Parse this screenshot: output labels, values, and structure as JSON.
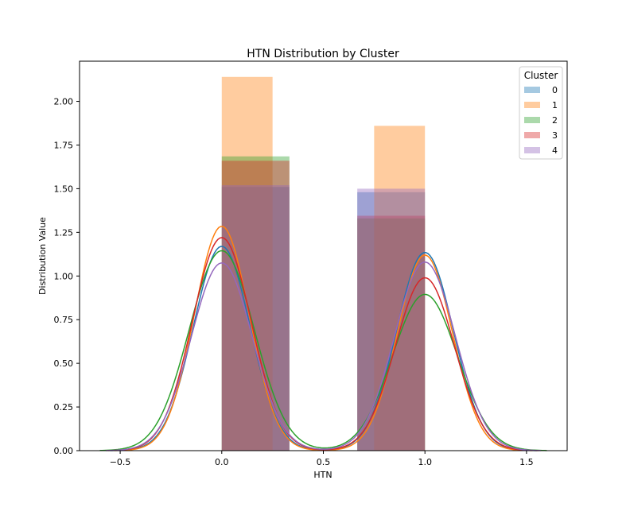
{
  "chart_data": {
    "type": "bar",
    "title": "HTN Distribution by Cluster",
    "xlabel": "HTN",
    "ylabel": "Distribution Value",
    "xlim": [
      -0.7,
      1.7
    ],
    "ylim": [
      0,
      2.23
    ],
    "xticks": [
      -0.5,
      0.0,
      0.5,
      1.0,
      1.5
    ],
    "xtick_labels": [
      "−0.5",
      "0.0",
      "0.5",
      "1.0",
      "1.5"
    ],
    "yticks": [
      0.0,
      0.25,
      0.5,
      0.75,
      1.0,
      1.25,
      1.5,
      1.75,
      2.0
    ],
    "ytick_labels": [
      "0.00",
      "0.25",
      "0.50",
      "0.75",
      "1.00",
      "1.25",
      "1.50",
      "1.75",
      "2.00"
    ],
    "grid": false,
    "legend": {
      "title": "Cluster",
      "placement": "top-right"
    },
    "series": [
      {
        "name": "0",
        "color": "#1f77b4",
        "bars": [
          {
            "x0": 0.0,
            "x1": 0.333,
            "y": 1.51
          },
          {
            "x0": 0.667,
            "x1": 1.0,
            "y": 1.48
          }
        ],
        "kde": {
          "peaks": [
            [
              0.0,
              1.17
            ],
            [
              1.0,
              1.135
            ]
          ],
          "sigma": 0.14,
          "range": [
            -0.55,
            1.55
          ]
        }
      },
      {
        "name": "1",
        "color": "#ff7f0e",
        "bars": [
          {
            "x0": 0.0,
            "x1": 0.25,
            "y": 2.14
          },
          {
            "x0": 0.75,
            "x1": 1.0,
            "y": 1.86
          }
        ],
        "kde": {
          "peaks": [
            [
              0.0,
              1.285
            ],
            [
              1.0,
              1.12
            ]
          ],
          "sigma": 0.135,
          "range": [
            -0.53,
            1.53
          ]
        }
      },
      {
        "name": "2",
        "color": "#2ca02c",
        "bars": [
          {
            "x0": 0.0,
            "x1": 0.333,
            "y": 1.685
          },
          {
            "x0": 0.667,
            "x1": 1.0,
            "y": 1.33
          }
        ],
        "kde": {
          "peaks": [
            [
              0.0,
              1.145
            ],
            [
              1.0,
              0.895
            ]
          ],
          "sigma": 0.16,
          "range": [
            -0.6,
            1.6
          ]
        }
      },
      {
        "name": "3",
        "color": "#d62728",
        "bars": [
          {
            "x0": 0.0,
            "x1": 0.333,
            "y": 1.66
          },
          {
            "x0": 0.667,
            "x1": 1.0,
            "y": 1.345
          }
        ],
        "kde": {
          "peaks": [
            [
              0.0,
              1.22
            ],
            [
              1.0,
              0.99
            ]
          ],
          "sigma": 0.145,
          "range": [
            -0.56,
            1.56
          ]
        }
      },
      {
        "name": "4",
        "color": "#9467bd",
        "bars": [
          {
            "x0": 0.0,
            "x1": 0.333,
            "y": 1.52
          },
          {
            "x0": 0.667,
            "x1": 1.0,
            "y": 1.5
          }
        ],
        "kde": {
          "peaks": [
            [
              0.0,
              1.075
            ],
            [
              1.0,
              1.08
            ]
          ],
          "sigma": 0.15,
          "range": [
            -0.57,
            1.57
          ]
        }
      }
    ]
  }
}
